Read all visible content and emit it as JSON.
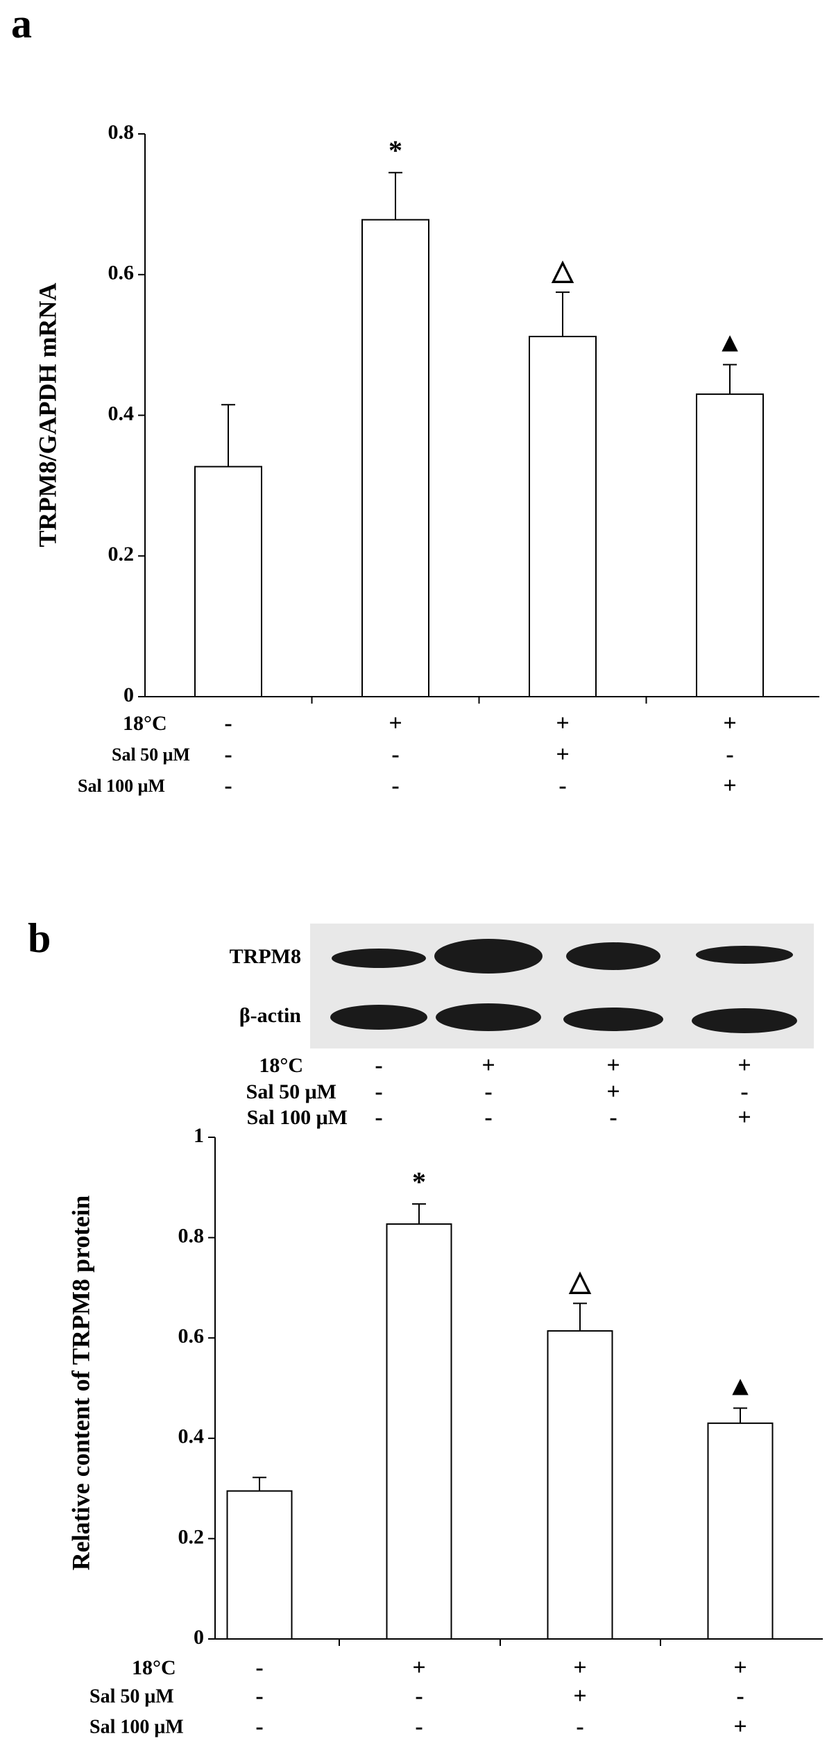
{
  "chart_data": [
    {
      "type": "bar",
      "panel_label": "a",
      "y_label": "TRPM8/GAPDH mRNA",
      "values": [
        0.327,
        0.678,
        0.512,
        0.43
      ],
      "errors": [
        0.088,
        0.067,
        0.063,
        0.042
      ],
      "annotations": [
        null,
        "*",
        "△",
        "▲"
      ],
      "ylim": [
        0,
        0.8
      ],
      "yticks": [
        0,
        0.2,
        0.4,
        0.6,
        0.8
      ],
      "color": "#ffffff",
      "conditions": [
        {
          "label": "18°C",
          "signs": [
            "-",
            "+",
            "+",
            "+"
          ]
        },
        {
          "label": "Sal 50 μM",
          "signs": [
            "-",
            "-",
            "+",
            "-"
          ]
        },
        {
          "label": "Sal 100 μM",
          "signs": [
            "-",
            "-",
            "-",
            "+"
          ]
        }
      ]
    },
    {
      "type": "bar",
      "panel_label": "b",
      "y_label": "Relative content of TRPM8 protein",
      "values": [
        0.295,
        0.827,
        0.614,
        0.43
      ],
      "errors": [
        0.027,
        0.04,
        0.055,
        0.03
      ],
      "annotations": [
        null,
        "*",
        "△",
        "▲"
      ],
      "ylim": [
        0,
        1
      ],
      "yticks": [
        0,
        0.2,
        0.4,
        0.6,
        0.8,
        1
      ],
      "color": "#ffffff",
      "blot": {
        "labels": [
          "TRPM8",
          "β-actin"
        ],
        "conditions": [
          {
            "label": "18°C",
            "signs": [
              "-",
              "+",
              "+",
              "+"
            ]
          },
          {
            "label": "Sal 50 μM",
            "signs": [
              "-",
              "-",
              "+",
              "-"
            ]
          },
          {
            "label": "Sal 100 μM",
            "signs": [
              "-",
              "-",
              "-",
              "+"
            ]
          }
        ]
      },
      "conditions": [
        {
          "label": "18°C",
          "signs": [
            "-",
            "+",
            "+",
            "+"
          ]
        },
        {
          "label": "Sal 50 μM",
          "signs": [
            "-",
            "-",
            "+",
            "-"
          ]
        },
        {
          "label": "Sal 100 μM",
          "signs": [
            "-",
            "-",
            "-",
            "+"
          ]
        }
      ]
    }
  ]
}
